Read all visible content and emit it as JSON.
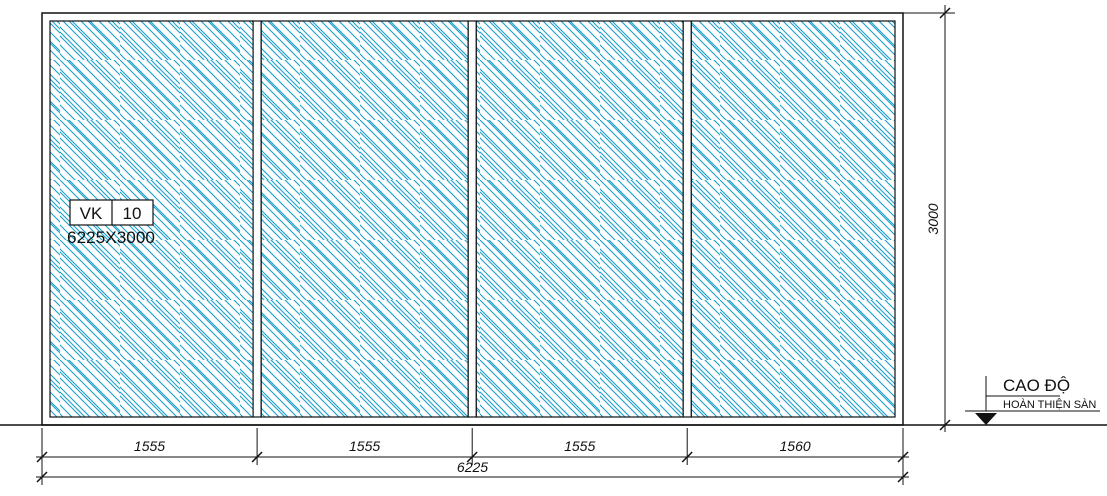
{
  "drawing": {
    "panel_widths": [
      "1555",
      "1555",
      "1555",
      "1560"
    ],
    "total_width": "6225",
    "height": "3000",
    "tag": {
      "code": "VK",
      "number": "10",
      "size": "6225X3000"
    },
    "level": {
      "title": "CAO ĐỘ",
      "subtitle": "HOÀN THIỆN SÀN"
    },
    "colors": {
      "hatch": "#1a9fc9",
      "line": "#111111",
      "background": "#ffffff"
    }
  }
}
